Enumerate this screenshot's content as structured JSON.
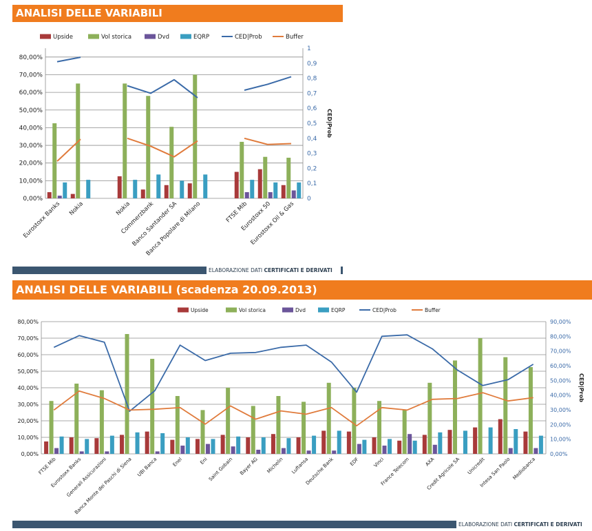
{
  "page": {
    "title1": "ANALISI DELLE VARIABILI",
    "title2": "ANALISI DELLE VARIABILI (scadenza 20.09.2013)",
    "footer_prefix": "ELABORAZIONE DATI ",
    "footer_bold": "CERTIFICATI E DERIVATI",
    "colors": {
      "banner": "#f07c1e",
      "footer": "#3b5670",
      "upside": "#a83a3a",
      "vol_storica": "#8db05a",
      "dvd": "#6b559a",
      "eqrp": "#3a9ec1",
      "ced_prob": "#3a6aa8",
      "buffer": "#e07b3c"
    }
  },
  "chart_data": [
    {
      "type": "bar",
      "legend": [
        "Upside",
        "Vol storica",
        "Dvd",
        "EQRP",
        "CED|Prob",
        "Buffer"
      ],
      "categories": [
        "Eurostoxx Banks",
        "Nokia",
        "",
        "Nokia",
        "Commerzbank",
        "Banco Santander SA",
        "Banca Popolare di Milano",
        "",
        "FTSE Mib",
        "Eurostoxx 50",
        "Eurostoxx Oil & Gas"
      ],
      "y_left_ticks": [
        "0,00%",
        "10,00%",
        "20,00%",
        "30,00%",
        "40,00%",
        "50,00%",
        "60,00%",
        "70,00%",
        "80,00%"
      ],
      "y_right_ticks": [
        "0",
        "0,1",
        "0,2",
        "0,3",
        "0,4",
        "0,5",
        "0,6",
        "0,7",
        "0,8",
        "0,9",
        "1"
      ],
      "ylabel_right": "CED|Prob",
      "ylim_left": [
        0,
        0.85
      ],
      "ylim_right": [
        0,
        1
      ],
      "series": [
        {
          "name": "Upside",
          "kind": "bar",
          "values": [
            0.035,
            0.025,
            null,
            0.125,
            0.05,
            0.075,
            0.085,
            null,
            0.15,
            0.165,
            0.075
          ]
        },
        {
          "name": "Vol storica",
          "kind": "bar",
          "values": [
            0.425,
            0.65,
            null,
            0.65,
            0.58,
            0.405,
            0.7,
            null,
            0.32,
            0.235,
            0.23
          ]
        },
        {
          "name": "Dvd",
          "kind": "bar",
          "values": [
            0.015,
            0.0,
            null,
            0.0,
            0.0,
            0.0,
            0.0,
            null,
            0.035,
            0.035,
            0.045
          ]
        },
        {
          "name": "EQRP",
          "kind": "bar",
          "values": [
            0.09,
            0.105,
            null,
            0.105,
            0.135,
            0.1,
            0.135,
            null,
            0.105,
            0.09,
            0.09
          ]
        },
        {
          "name": "CED|Prob",
          "kind": "line",
          "axis": "right",
          "values": [
            0.91,
            0.94,
            null,
            0.75,
            0.7,
            0.79,
            0.67,
            null,
            0.72,
            0.76,
            0.81
          ]
        },
        {
          "name": "Buffer",
          "kind": "line",
          "axis": "left",
          "values": [
            0.21,
            0.335,
            null,
            0.34,
            0.295,
            0.235,
            0.325,
            null,
            0.34,
            0.305,
            0.31
          ]
        }
      ]
    },
    {
      "type": "bar",
      "legend": [
        "Upside",
        "Vol storica",
        "Dvd",
        "EQRP",
        "CED|Prob",
        "Buffer"
      ],
      "categories": [
        "FTSE Mib",
        "Eurostoxx Banks",
        "Generali Assicurazioni",
        "Banca Monte dei Paschi di Siena",
        "UBI Banca",
        "Enel",
        "Eni",
        "Saint Gobain",
        "Bayer AG",
        "Michelin",
        "Luftansa",
        "Deutsche Bank",
        "EDF",
        "Vinci",
        "France Telecom",
        "AXA",
        "Credit Agricole SA",
        "Unicredit",
        "Intesa San Paolo",
        "Mediobanca"
      ],
      "y_left_ticks": [
        "0,00%",
        "10,00%",
        "20,00%",
        "30,00%",
        "40,00%",
        "50,00%",
        "60,00%",
        "70,00%",
        "80,00%"
      ],
      "y_right_ticks": [
        "0,00%",
        "10,00%",
        "20,00%",
        "30,00%",
        "40,00%",
        "50,00%",
        "60,00%",
        "70,00%",
        "80,00%",
        "90,00%"
      ],
      "ylabel_right": "CED|Prob",
      "ylim_left": [
        0,
        0.8
      ],
      "ylim_right": [
        0,
        0.9
      ],
      "series": [
        {
          "name": "Upside",
          "kind": "bar",
          "values": [
            0.075,
            0.1,
            0.095,
            0.115,
            0.135,
            0.085,
            0.09,
            0.115,
            0.1,
            0.12,
            0.1,
            0.14,
            0.135,
            0.1,
            0.08,
            0.115,
            0.145,
            0.16,
            0.21,
            0.135
          ]
        },
        {
          "name": "Vol storica",
          "kind": "bar",
          "values": [
            0.32,
            0.425,
            0.385,
            0.725,
            0.575,
            0.35,
            0.265,
            0.4,
            0.29,
            0.35,
            0.315,
            0.43,
            0.4,
            0.32,
            0.265,
            0.43,
            0.565,
            0.7,
            0.585,
            0.525
          ]
        },
        {
          "name": "Dvd",
          "kind": "bar",
          "values": [
            0.035,
            0.015,
            0.015,
            0.0,
            0.015,
            0.05,
            0.06,
            0.045,
            0.025,
            0.035,
            0.02,
            0.02,
            0.06,
            0.05,
            0.12,
            0.055,
            0.0,
            0.0,
            0.035,
            0.035
          ]
        },
        {
          "name": "EQRP",
          "kind": "bar",
          "values": [
            0.105,
            0.09,
            0.11,
            0.13,
            0.125,
            0.1,
            0.09,
            0.105,
            0.1,
            0.095,
            0.11,
            0.14,
            0.085,
            0.09,
            0.08,
            0.13,
            0.14,
            0.16,
            0.15,
            0.11
          ]
        },
        {
          "name": "CED|Prob",
          "kind": "line",
          "axis": "right",
          "values": [
            0.725,
            0.805,
            0.76,
            0.29,
            0.43,
            0.74,
            0.635,
            0.685,
            0.69,
            0.725,
            0.74,
            0.625,
            0.42,
            0.8,
            0.81,
            0.715,
            0.57,
            0.465,
            0.505,
            0.61
          ]
        },
        {
          "name": "Buffer",
          "kind": "line",
          "axis": "left",
          "values": [
            0.265,
            0.38,
            0.335,
            0.265,
            0.27,
            0.28,
            0.18,
            0.29,
            0.21,
            0.26,
            0.24,
            0.28,
            0.17,
            0.28,
            0.265,
            0.33,
            0.335,
            0.37,
            0.32,
            0.34
          ]
        }
      ]
    }
  ]
}
